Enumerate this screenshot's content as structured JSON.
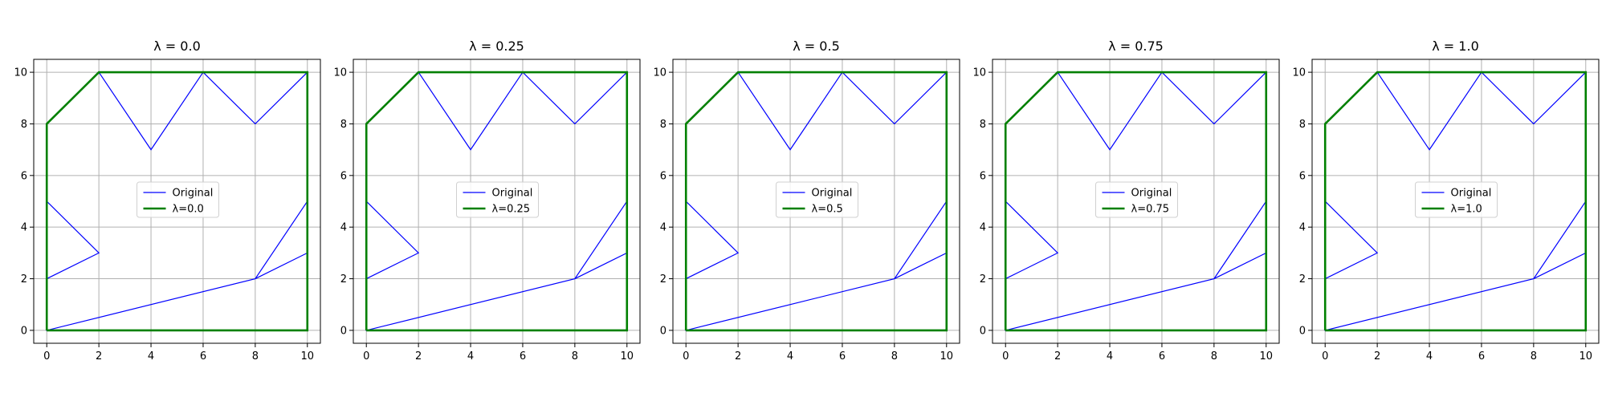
{
  "figure": {
    "background": "#ffffff"
  },
  "chart_data": [
    {
      "type": "line",
      "title": "λ = 0.0",
      "xlabel": "",
      "ylabel": "",
      "xlim": [
        -0.5,
        10.5
      ],
      "ylim": [
        -0.5,
        10.5
      ],
      "xticks": [
        0,
        2,
        4,
        6,
        8,
        10
      ],
      "yticks": [
        0,
        2,
        4,
        6,
        8,
        10
      ],
      "grid": true,
      "legend_position": "center",
      "series": [
        {
          "name": "Original",
          "color": "#0000ff",
          "points": [
            [
              0,
              0
            ],
            [
              10,
              0
            ],
            [
              10,
              10
            ],
            [
              8,
              8
            ],
            [
              6,
              10
            ],
            [
              4,
              7
            ],
            [
              2,
              10
            ],
            [
              0,
              8
            ],
            [
              0,
              5
            ],
            [
              2,
              3
            ],
            [
              0,
              2
            ],
            [
              0,
              0
            ],
            [
              8,
              2
            ],
            [
              10,
              5
            ],
            [
              10,
              3
            ],
            [
              8,
              2
            ]
          ]
        },
        {
          "name": "λ=0.0",
          "color": "#008000",
          "points": [
            [
              0,
              0
            ],
            [
              10,
              0
            ],
            [
              10,
              10
            ],
            [
              2,
              10
            ],
            [
              0,
              8
            ],
            [
              0,
              0
            ]
          ]
        }
      ]
    },
    {
      "type": "line",
      "title": "λ = 0.25",
      "xlabel": "",
      "ylabel": "",
      "xlim": [
        -0.5,
        10.5
      ],
      "ylim": [
        -0.5,
        10.5
      ],
      "xticks": [
        0,
        2,
        4,
        6,
        8,
        10
      ],
      "yticks": [
        0,
        2,
        4,
        6,
        8,
        10
      ],
      "grid": true,
      "legend_position": "center",
      "series": [
        {
          "name": "Original",
          "color": "#0000ff",
          "points": [
            [
              0,
              0
            ],
            [
              10,
              0
            ],
            [
              10,
              10
            ],
            [
              8,
              8
            ],
            [
              6,
              10
            ],
            [
              4,
              7
            ],
            [
              2,
              10
            ],
            [
              0,
              8
            ],
            [
              0,
              5
            ],
            [
              2,
              3
            ],
            [
              0,
              2
            ],
            [
              0,
              0
            ],
            [
              8,
              2
            ],
            [
              10,
              5
            ],
            [
              10,
              3
            ],
            [
              8,
              2
            ]
          ]
        },
        {
          "name": "λ=0.25",
          "color": "#008000",
          "points": [
            [
              0,
              0
            ],
            [
              10,
              0
            ],
            [
              10,
              10
            ],
            [
              2,
              10
            ],
            [
              0,
              8
            ],
            [
              0,
              0
            ]
          ]
        }
      ]
    },
    {
      "type": "line",
      "title": "λ = 0.5",
      "xlabel": "",
      "ylabel": "",
      "xlim": [
        -0.5,
        10.5
      ],
      "ylim": [
        -0.5,
        10.5
      ],
      "xticks": [
        0,
        2,
        4,
        6,
        8,
        10
      ],
      "yticks": [
        0,
        2,
        4,
        6,
        8,
        10
      ],
      "grid": true,
      "legend_position": "center",
      "series": [
        {
          "name": "Original",
          "color": "#0000ff",
          "points": [
            [
              0,
              0
            ],
            [
              10,
              0
            ],
            [
              10,
              10
            ],
            [
              8,
              8
            ],
            [
              6,
              10
            ],
            [
              4,
              7
            ],
            [
              2,
              10
            ],
            [
              0,
              8
            ],
            [
              0,
              5
            ],
            [
              2,
              3
            ],
            [
              0,
              2
            ],
            [
              0,
              0
            ],
            [
              8,
              2
            ],
            [
              10,
              5
            ],
            [
              10,
              3
            ],
            [
              8,
              2
            ]
          ]
        },
        {
          "name": "λ=0.5",
          "color": "#008000",
          "points": [
            [
              0,
              0
            ],
            [
              10,
              0
            ],
            [
              10,
              10
            ],
            [
              2,
              10
            ],
            [
              0,
              8
            ],
            [
              0,
              0
            ]
          ]
        }
      ]
    },
    {
      "type": "line",
      "title": "λ = 0.75",
      "xlabel": "",
      "ylabel": "",
      "xlim": [
        -0.5,
        10.5
      ],
      "ylim": [
        -0.5,
        10.5
      ],
      "xticks": [
        0,
        2,
        4,
        6,
        8,
        10
      ],
      "yticks": [
        0,
        2,
        4,
        6,
        8,
        10
      ],
      "grid": true,
      "legend_position": "center",
      "series": [
        {
          "name": "Original",
          "color": "#0000ff",
          "points": [
            [
              0,
              0
            ],
            [
              10,
              0
            ],
            [
              10,
              10
            ],
            [
              8,
              8
            ],
            [
              6,
              10
            ],
            [
              4,
              7
            ],
            [
              2,
              10
            ],
            [
              0,
              8
            ],
            [
              0,
              5
            ],
            [
              2,
              3
            ],
            [
              0,
              2
            ],
            [
              0,
              0
            ],
            [
              8,
              2
            ],
            [
              10,
              5
            ],
            [
              10,
              3
            ],
            [
              8,
              2
            ]
          ]
        },
        {
          "name": "λ=0.75",
          "color": "#008000",
          "points": [
            [
              0,
              0
            ],
            [
              10,
              0
            ],
            [
              10,
              10
            ],
            [
              2,
              10
            ],
            [
              0,
              8
            ],
            [
              0,
              0
            ]
          ]
        }
      ]
    },
    {
      "type": "line",
      "title": "λ = 1.0",
      "xlabel": "",
      "ylabel": "",
      "xlim": [
        -0.5,
        10.5
      ],
      "ylim": [
        -0.5,
        10.5
      ],
      "xticks": [
        0,
        2,
        4,
        6,
        8,
        10
      ],
      "yticks": [
        0,
        2,
        4,
        6,
        8,
        10
      ],
      "grid": true,
      "legend_position": "center",
      "series": [
        {
          "name": "Original",
          "color": "#0000ff",
          "points": [
            [
              0,
              0
            ],
            [
              10,
              0
            ],
            [
              10,
              10
            ],
            [
              8,
              8
            ],
            [
              6,
              10
            ],
            [
              4,
              7
            ],
            [
              2,
              10
            ],
            [
              0,
              8
            ],
            [
              0,
              5
            ],
            [
              2,
              3
            ],
            [
              0,
              2
            ],
            [
              0,
              0
            ],
            [
              8,
              2
            ],
            [
              10,
              5
            ],
            [
              10,
              3
            ],
            [
              8,
              2
            ]
          ]
        },
        {
          "name": "λ=1.0",
          "color": "#008000",
          "points": [
            [
              0,
              0
            ],
            [
              10,
              0
            ],
            [
              10,
              10
            ],
            [
              2,
              10
            ],
            [
              0,
              8
            ],
            [
              0,
              0
            ]
          ]
        }
      ]
    }
  ]
}
